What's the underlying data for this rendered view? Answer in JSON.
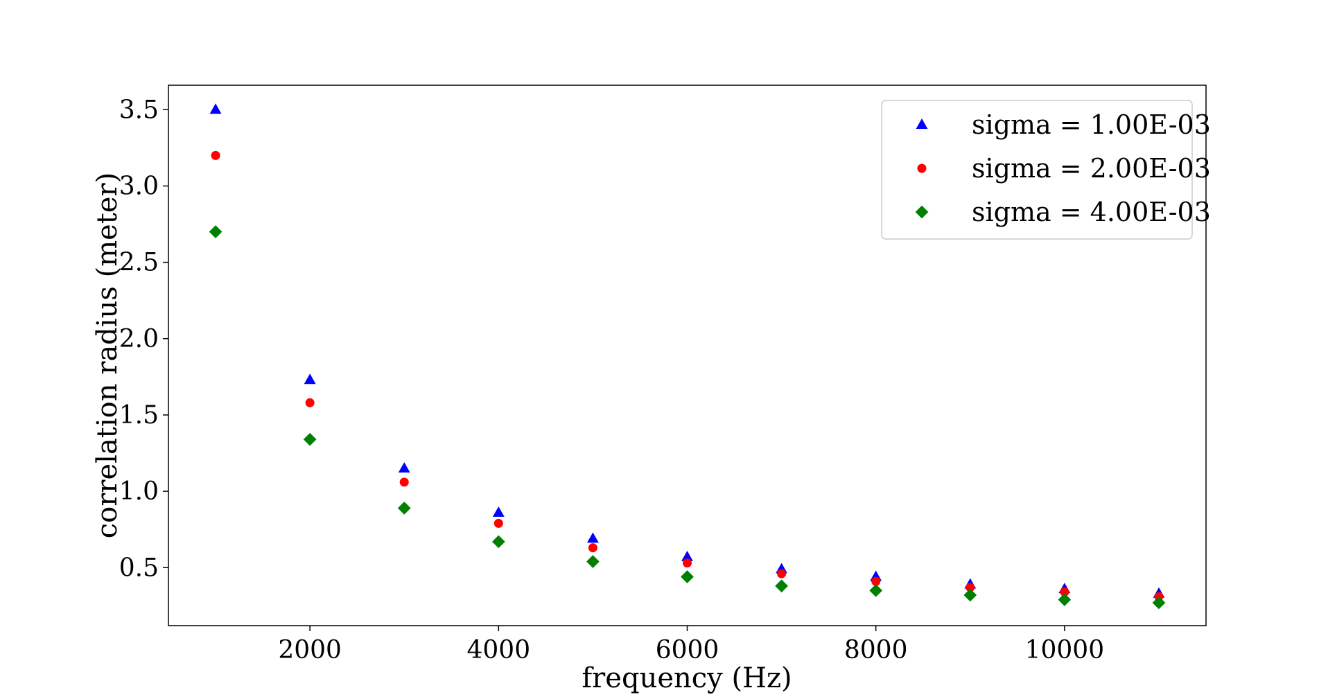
{
  "chart_data": {
    "type": "scatter",
    "title": "",
    "xlabel": "frequency (Hz)",
    "ylabel": "correlation radius (meter)",
    "xlim": [
      500,
      11500
    ],
    "ylim": [
      0.12,
      3.66
    ],
    "xticks": [
      2000,
      4000,
      6000,
      8000,
      10000
    ],
    "xtick_labels": [
      "2000",
      "4000",
      "6000",
      "8000",
      "10000"
    ],
    "yticks": [
      0.5,
      1.0,
      1.5,
      2.0,
      2.5,
      3.0,
      3.5
    ],
    "ytick_labels": [
      "0.5",
      "1.0",
      "1.5",
      "2.0",
      "2.5",
      "3.0",
      "3.5"
    ],
    "grid": false,
    "legend_position": "top-right",
    "x": [
      1000,
      2000,
      3000,
      4000,
      5000,
      6000,
      7000,
      8000,
      9000,
      10000,
      11000
    ],
    "series": [
      {
        "name": "sigma = 1.00E-03",
        "marker": "triangle",
        "color": "#0000ff",
        "values": [
          3.5,
          1.73,
          1.15,
          0.86,
          0.69,
          0.57,
          0.49,
          0.44,
          0.39,
          0.36,
          0.33
        ]
      },
      {
        "name": "sigma = 2.00E-03",
        "marker": "circle",
        "color": "#ff0000",
        "values": [
          3.2,
          1.58,
          1.06,
          0.79,
          0.63,
          0.53,
          0.46,
          0.41,
          0.37,
          0.34,
          0.31
        ]
      },
      {
        "name": "sigma = 4.00E-03",
        "marker": "diamond",
        "color": "#008000",
        "values": [
          2.7,
          1.34,
          0.89,
          0.67,
          0.54,
          0.44,
          0.38,
          0.35,
          0.32,
          0.29,
          0.27
        ]
      }
    ]
  }
}
